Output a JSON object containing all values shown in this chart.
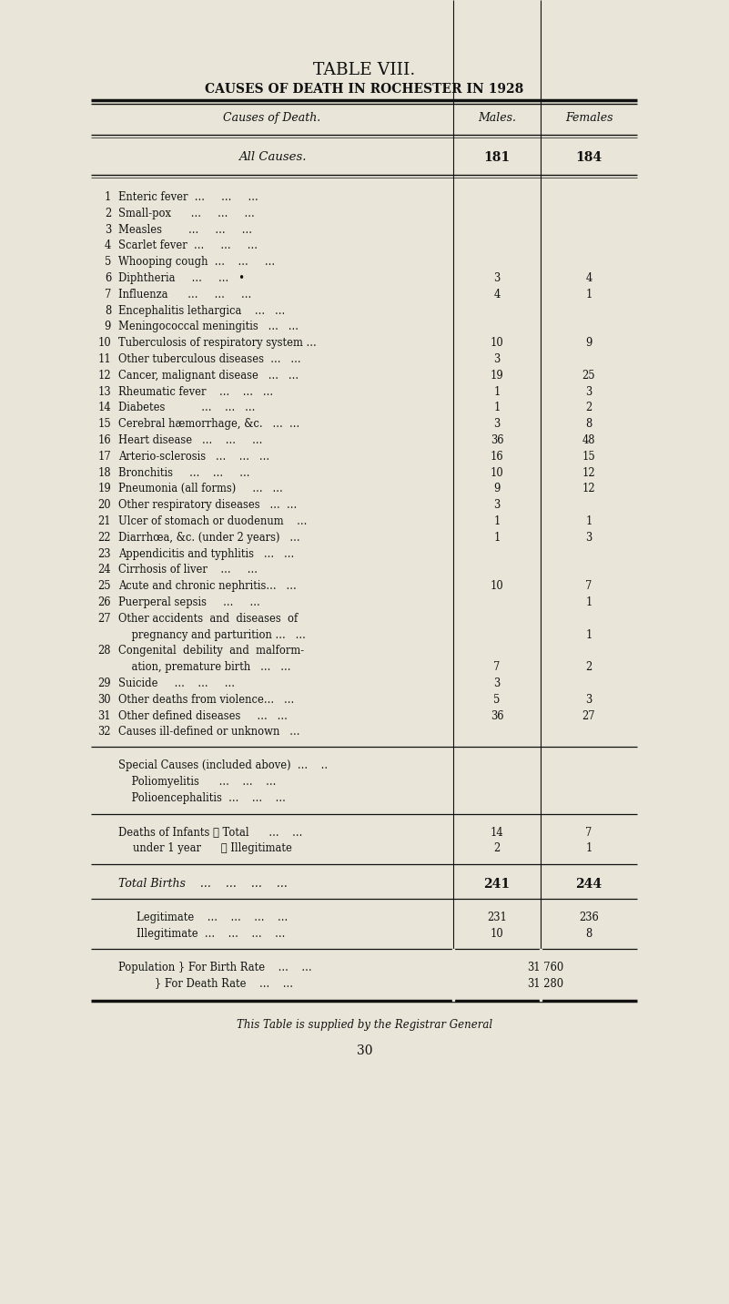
{
  "title1": "TABLE VIII.",
  "title2": "CAUSES OF DEATH IN ROCHESTER IN 1928",
  "col_header_cause": "Causes of Death.",
  "col_header_males": "Males.",
  "col_header_females": "Females",
  "all_causes_label": "All Causes.",
  "all_causes_males": "181",
  "all_causes_females": "184",
  "rows": [
    {
      "num": "1",
      "cause": "Enteric fever  ...     ...     ...",
      "males": "",
      "females": "",
      "multiline": false
    },
    {
      "num": "2",
      "cause": "Small-pox      ...     ...     ...",
      "males": "",
      "females": "",
      "multiline": false
    },
    {
      "num": "3",
      "cause": "Measles        ...     ...     ...",
      "males": "",
      "females": "",
      "multiline": false
    },
    {
      "num": "4",
      "cause": "Scarlet fever  ...     ...     ...",
      "males": "",
      "females": "",
      "multiline": false
    },
    {
      "num": "5",
      "cause": "Whooping cough  ...    ...     ...",
      "males": "",
      "females": "",
      "multiline": false
    },
    {
      "num": "6",
      "cause": "Diphtheria     ...     ...   •",
      "males": "3",
      "females": "4",
      "multiline": false
    },
    {
      "num": "7",
      "cause": "Influenza      ...     ...     ...",
      "males": "4",
      "females": "1",
      "multiline": false
    },
    {
      "num": "8",
      "cause": "Encephalitis lethargica    ...   ...",
      "males": "",
      "females": "",
      "multiline": false
    },
    {
      "num": "9",
      "cause": "Meningococcal meningitis   ...   ...",
      "males": "",
      "females": "",
      "multiline": false
    },
    {
      "num": "10",
      "cause": "Tuberculosis of respiratory system ...",
      "males": "10",
      "females": "9",
      "multiline": false
    },
    {
      "num": "11",
      "cause": "Other tuberculous diseases  ...   ...",
      "males": "3",
      "females": "",
      "multiline": false
    },
    {
      "num": "12",
      "cause": "Cancer, malignant disease   ...   ...",
      "males": "19",
      "females": "25",
      "multiline": false
    },
    {
      "num": "13",
      "cause": "Rheumatic fever    ...    ...   ...",
      "males": "1",
      "females": "3",
      "multiline": false
    },
    {
      "num": "14",
      "cause": "Diabetes           ...    ...   ...",
      "males": "1",
      "females": "2",
      "multiline": false
    },
    {
      "num": "15",
      "cause": "Cerebral hæmorrhage, &c.   ...  ...",
      "males": "3",
      "females": "8",
      "multiline": false
    },
    {
      "num": "16",
      "cause": "Heart disease   ...    ...     ...",
      "males": "36",
      "females": "48",
      "multiline": false
    },
    {
      "num": "17",
      "cause": "Arterio-sclerosis   ...    ...   ...",
      "males": "16",
      "females": "15",
      "multiline": false
    },
    {
      "num": "18",
      "cause": "Bronchitis     ...    ...     ...",
      "males": "10",
      "females": "12",
      "multiline": false
    },
    {
      "num": "19",
      "cause": "Pneumonia (all forms)     ...   ...",
      "males": "9",
      "females": "12",
      "multiline": false
    },
    {
      "num": "20",
      "cause": "Other respiratory diseases   ...  ...",
      "males": "3",
      "females": "",
      "multiline": false
    },
    {
      "num": "21",
      "cause": "Ulcer of stomach or duodenum    ...",
      "males": "1",
      "females": "1",
      "multiline": false
    },
    {
      "num": "22",
      "cause": "Diarrhœa, &c. (under 2 years)   ...",
      "males": "1",
      "females": "3",
      "multiline": false
    },
    {
      "num": "23",
      "cause": "Appendicitis and typhlitis   ...   ...",
      "males": "",
      "females": "",
      "multiline": false
    },
    {
      "num": "24",
      "cause": "Cirrhosis of liver    ...     ...",
      "males": "",
      "females": "",
      "multiline": false
    },
    {
      "num": "25",
      "cause": "Acute and chronic nephritis...   ...",
      "males": "10",
      "females": "7",
      "multiline": false
    },
    {
      "num": "26",
      "cause": "Puerperal sepsis     ...     ...",
      "males": "",
      "females": "1",
      "multiline": false
    },
    {
      "num": "27",
      "cause": "Other accidents  and  diseases  of",
      "males": "",
      "females": "",
      "multiline": true,
      "cause2": "    pregnancy and parturition ...   ...",
      "males2": "",
      "females2": "1"
    },
    {
      "num": "28",
      "cause": "Congenital  debility  and  malform-",
      "males": "",
      "females": "",
      "multiline": true,
      "cause2": "    ation, premature birth   ...   ...",
      "males2": "7",
      "females2": "2"
    },
    {
      "num": "29",
      "cause": "Suicide     ...    ...     ...",
      "males": "3",
      "females": "",
      "multiline": false
    },
    {
      "num": "30",
      "cause": "Other deaths from violence...   ...",
      "males": "5",
      "females": "3",
      "multiline": false
    },
    {
      "num": "31",
      "cause": "Other defined diseases     ...   ...",
      "males": "36",
      "females": "27",
      "multiline": false
    },
    {
      "num": "32",
      "cause": "Causes ill-defined or unknown   ...",
      "males": "",
      "females": "",
      "multiline": false
    }
  ],
  "special_label0": "Special Causes (included above)  ...    ..",
  "special_label1": "    Poliomyelitis      ...    ...    ...",
  "special_label2": "    Polioencephalitis  ...    ...    ...",
  "infants_line1": "Deaths of Infants ❴ Total      ...    ...",
  "infants_line2": "under 1 year      ❵ Illegitimate",
  "infants_total_m": "14",
  "infants_total_f": "7",
  "infants_illeg_m": "2",
  "infants_illeg_f": "1",
  "total_births_label": "Total Births    ...    ...    ...    ...",
  "total_births_males": "241",
  "total_births_females": "244",
  "legit_label": "Legitimate    ...    ...    ...    ...",
  "legit_males": "231",
  "legit_females": "236",
  "illegit_label": "Illegitimate  ...    ...    ...    ...",
  "illegit_males": "10",
  "illegit_females": "8",
  "pop_label1": "Population } For Birth Rate    ...    ...",
  "pop_label2": "           } For Death Rate    ...    ...",
  "pop_val1": "31,760",
  "pop_val2": "31,280",
  "footer": "This Table is supplied by the Registrar General",
  "page_num": "30",
  "bg_color": "#e9e5d9",
  "text_color": "#111111",
  "line_color": "#111111"
}
